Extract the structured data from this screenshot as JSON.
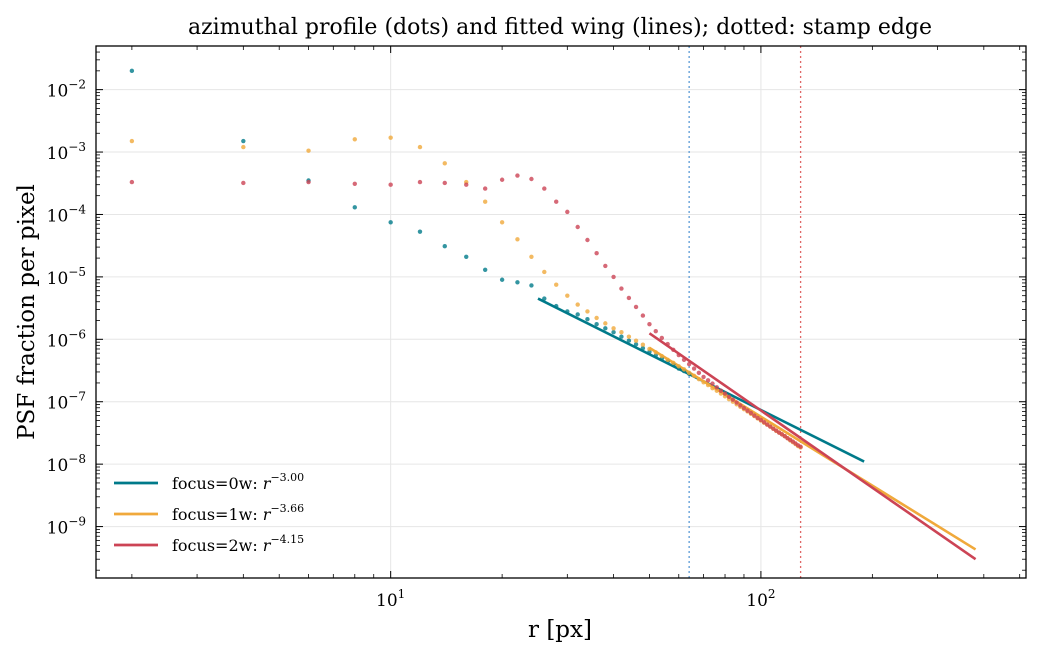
{
  "chart_data": {
    "type": "scatter",
    "title": "azimuthal profile (dots) and fitted wing (lines); dotted: stamp edge",
    "xlabel": "r [px]",
    "ylabel": "PSF fraction per pixel",
    "xscale": "log",
    "yscale": "log",
    "xlim": [
      1.6,
      520
    ],
    "ylim": [
      1.5e-10,
      0.05
    ],
    "x_ticks": [
      {
        "value": 10,
        "label": "10",
        "exp": "1"
      },
      {
        "value": 100,
        "label": "10",
        "exp": "2"
      }
    ],
    "y_ticks": [
      {
        "value": 1e-09,
        "label": "10",
        "exp": "−9"
      },
      {
        "value": 1e-08,
        "label": "10",
        "exp": "−8"
      },
      {
        "value": 1e-07,
        "label": "10",
        "exp": "−7"
      },
      {
        "value": 1e-06,
        "label": "10",
        "exp": "−6"
      },
      {
        "value": 1e-05,
        "label": "10",
        "exp": "−5"
      },
      {
        "value": 0.0001,
        "label": "10",
        "exp": "−4"
      },
      {
        "value": 0.001,
        "label": "10",
        "exp": "−3"
      },
      {
        "value": 0.01,
        "label": "10",
        "exp": "−2"
      }
    ],
    "grid": true,
    "legend_position": "lower-left",
    "vlines": [
      {
        "x": 64,
        "color": "#5b9bd5",
        "style": "dotted"
      },
      {
        "x": 128,
        "color": "#e06666",
        "style": "dotted"
      }
    ],
    "series": [
      {
        "name": "focus=0w",
        "slope_label": "−3.00",
        "color": "#007a8a",
        "profile": [
          [
            2,
            0.02
          ],
          [
            4,
            0.0015
          ],
          [
            6,
            0.00035
          ],
          [
            8,
            0.00013
          ],
          [
            10,
            7.5e-05
          ],
          [
            12,
            5.3e-05
          ],
          [
            14,
            3.1e-05
          ],
          [
            16,
            2.1e-05
          ],
          [
            18,
            1.3e-05
          ],
          [
            20,
            9e-06
          ],
          [
            22,
            8.2e-06
          ],
          [
            24,
            7.3e-06
          ],
          [
            26,
            4.5e-06
          ],
          [
            28,
            3.4e-06
          ],
          [
            30,
            2.8e-06
          ],
          [
            32,
            2.5e-06
          ],
          [
            34,
            2.1e-06
          ],
          [
            36,
            1.75e-06
          ],
          [
            38,
            1.5e-06
          ],
          [
            40,
            1.3e-06
          ],
          [
            42,
            1.1e-06
          ],
          [
            44,
            9.5e-07
          ],
          [
            46,
            8.3e-07
          ],
          [
            48,
            7.2e-07
          ],
          [
            50,
            6.3e-07
          ],
          [
            52,
            5.5e-07
          ],
          [
            54,
            4.9e-07
          ],
          [
            56,
            4.4e-07
          ],
          [
            58,
            3.9e-07
          ],
          [
            60,
            3.4e-07
          ],
          [
            62,
            3.1e-07
          ],
          [
            64,
            2.8e-07
          ]
        ],
        "fit": [
          [
            25,
            4.5e-06
          ],
          [
            190,
            1.1e-08
          ]
        ]
      },
      {
        "name": "focus=1w",
        "slope_label": "−3.66",
        "color": "#f0a93b",
        "profile": [
          [
            2,
            0.0015
          ],
          [
            4,
            0.0012
          ],
          [
            6,
            0.00105
          ],
          [
            8,
            0.0016
          ],
          [
            10,
            0.0017
          ],
          [
            12,
            0.0012
          ],
          [
            14,
            0.00066
          ],
          [
            16,
            0.00033
          ],
          [
            18,
            0.00016
          ],
          [
            20,
            7.5e-05
          ],
          [
            22,
            4e-05
          ],
          [
            24,
            2.1e-05
          ],
          [
            26,
            1.2e-05
          ],
          [
            28,
            7.5e-06
          ],
          [
            30,
            5e-06
          ],
          [
            32,
            3.6e-06
          ],
          [
            34,
            2.8e-06
          ],
          [
            36,
            2.2e-06
          ],
          [
            38,
            1.8e-06
          ],
          [
            40,
            1.5e-06
          ],
          [
            42,
            1.3e-06
          ],
          [
            44,
            1.1e-06
          ],
          [
            46,
            9.5e-07
          ],
          [
            48,
            8.2e-07
          ],
          [
            50,
            7e-07
          ],
          [
            52,
            6.2e-07
          ],
          [
            54,
            5.4e-07
          ],
          [
            56,
            4.7e-07
          ],
          [
            58,
            4.2e-07
          ],
          [
            60,
            3.7e-07
          ],
          [
            62,
            3.3e-07
          ],
          [
            64,
            2.9e-07
          ],
          [
            66,
            2.6e-07
          ],
          [
            68,
            2.3e-07
          ],
          [
            70,
            2.05e-07
          ],
          [
            72,
            1.85e-07
          ],
          [
            74,
            1.65e-07
          ],
          [
            76,
            1.5e-07
          ],
          [
            78,
            1.35e-07
          ],
          [
            80,
            1.22e-07
          ],
          [
            82,
            1.1e-07
          ],
          [
            84,
            1e-07
          ],
          [
            86,
            9.1e-08
          ],
          [
            88,
            8.3e-08
          ],
          [
            90,
            7.6e-08
          ],
          [
            92,
            7e-08
          ],
          [
            94,
            6.4e-08
          ],
          [
            96,
            5.9e-08
          ],
          [
            98,
            5.4e-08
          ],
          [
            100,
            5e-08
          ],
          [
            102,
            4.6e-08
          ],
          [
            104,
            4.3e-08
          ],
          [
            106,
            4e-08
          ],
          [
            108,
            3.7e-08
          ],
          [
            110,
            3.4e-08
          ],
          [
            112,
            3.2e-08
          ],
          [
            114,
            3e-08
          ],
          [
            116,
            2.8e-08
          ],
          [
            118,
            2.6e-08
          ],
          [
            120,
            2.4e-08
          ],
          [
            122,
            2.25e-08
          ],
          [
            124,
            2.1e-08
          ],
          [
            126,
            1.95e-08
          ],
          [
            128,
            1.85e-08
          ]
        ],
        "fit": [
          [
            50,
            7.3e-07
          ],
          [
            380,
            4.3e-10
          ]
        ]
      },
      {
        "name": "focus=2w",
        "slope_label": "−4.15",
        "color": "#cc4455",
        "profile": [
          [
            2,
            0.00033
          ],
          [
            4,
            0.00032
          ],
          [
            6,
            0.00033
          ],
          [
            8,
            0.00031
          ],
          [
            10,
            0.0003
          ],
          [
            12,
            0.00033
          ],
          [
            14,
            0.00032
          ],
          [
            16,
            0.0003
          ],
          [
            18,
            0.00026
          ],
          [
            20,
            0.00036
          ],
          [
            22,
            0.00042
          ],
          [
            24,
            0.00037
          ],
          [
            26,
            0.00026
          ],
          [
            28,
            0.00016
          ],
          [
            30,
            0.00011
          ],
          [
            32,
            6.3e-05
          ],
          [
            34,
            3.9e-05
          ],
          [
            36,
            2.4e-05
          ],
          [
            38,
            1.5e-05
          ],
          [
            40,
            1e-05
          ],
          [
            42,
            6.5e-06
          ],
          [
            44,
            4.6e-06
          ],
          [
            46,
            3.3e-06
          ],
          [
            48,
            2.4e-06
          ],
          [
            50,
            1.75e-06
          ],
          [
            52,
            1.35e-06
          ],
          [
            54,
            1.05e-06
          ],
          [
            56,
            8.4e-07
          ],
          [
            58,
            6.8e-07
          ],
          [
            60,
            5.6e-07
          ],
          [
            62,
            4.7e-07
          ],
          [
            64,
            4e-07
          ],
          [
            66,
            3.4e-07
          ],
          [
            68,
            2.9e-07
          ],
          [
            70,
            2.5e-07
          ],
          [
            72,
            2.2e-07
          ],
          [
            74,
            1.95e-07
          ],
          [
            76,
            1.7e-07
          ],
          [
            78,
            1.5e-07
          ],
          [
            80,
            1.35e-07
          ],
          [
            82,
            1.2e-07
          ],
          [
            84,
            1.08e-07
          ],
          [
            86,
            9.7e-08
          ],
          [
            88,
            8.7e-08
          ],
          [
            90,
            7.9e-08
          ],
          [
            92,
            7.2e-08
          ],
          [
            94,
            6.6e-08
          ],
          [
            96,
            6e-08
          ],
          [
            98,
            5.5e-08
          ],
          [
            100,
            5.1e-08
          ],
          [
            102,
            4.7e-08
          ],
          [
            104,
            4.3e-08
          ],
          [
            106,
            4e-08
          ],
          [
            108,
            3.7e-08
          ],
          [
            110,
            3.45e-08
          ],
          [
            112,
            3.2e-08
          ],
          [
            114,
            3e-08
          ],
          [
            116,
            2.8e-08
          ],
          [
            118,
            2.6e-08
          ],
          [
            120,
            2.45e-08
          ],
          [
            122,
            2.3e-08
          ],
          [
            124,
            2.15e-08
          ],
          [
            126,
            2e-08
          ],
          [
            128,
            1.9e-08
          ]
        ],
        "fit": [
          [
            50,
            1.25e-06
          ],
          [
            380,
            3e-10
          ]
        ]
      }
    ]
  }
}
